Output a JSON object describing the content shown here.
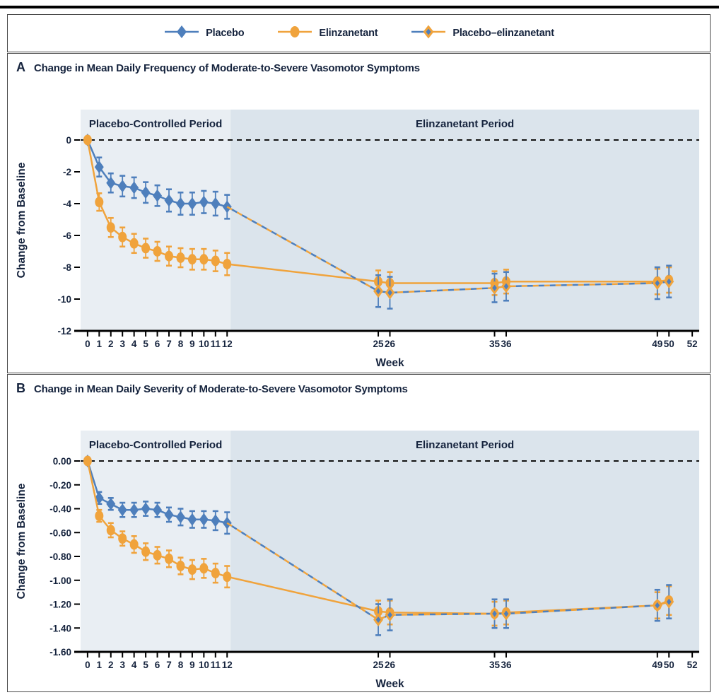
{
  "colors": {
    "blue": "#4e7fbc",
    "orange": "#f0a33c",
    "text": "#15233d",
    "shade_placebo_period": "#e9eef3",
    "shade_elinzanetant_period": "#dbe4ec",
    "zero_line": "#111111",
    "axis": "#000000"
  },
  "legend": {
    "items": [
      {
        "label": "Placebo",
        "marker": "blue-diamond-icon"
      },
      {
        "label": "Elinzanetant",
        "marker": "orange-circle-icon"
      },
      {
        "label": "Placebo–elinzanetant",
        "marker": "duo-diamond-icon"
      }
    ]
  },
  "panels": [
    {
      "letter": "A",
      "title": "Change in Mean Daily Frequency of Moderate-to-Severe Vasomotor Symptoms"
    },
    {
      "letter": "B",
      "title": "Change in Mean Daily Severity of Moderate-to-Severe Vasomotor Symptoms"
    }
  ],
  "chart_data": [
    {
      "type": "line",
      "panel": "A",
      "title": "Change in Mean Daily Frequency of Moderate-to-Severe Vasomotor Symptoms",
      "xlabel": "Week",
      "ylabel": "Change from Baseline",
      "xlim": [
        -0.6,
        52.6
      ],
      "ylim": [
        -12,
        0
      ],
      "grid": false,
      "zero_line_dashed": true,
      "xticks": [
        0,
        1,
        2,
        3,
        4,
        5,
        6,
        7,
        8,
        9,
        10,
        11,
        12,
        25,
        26,
        35,
        36,
        49,
        50,
        52
      ],
      "yticks": [
        0,
        -2,
        -4,
        -6,
        -8,
        -10,
        -12
      ],
      "ytick_labels": [
        "0",
        "-2",
        "-4",
        "-6",
        "-8",
        "-10",
        "-12"
      ],
      "regions": [
        {
          "label": "Placebo-Controlled Period",
          "from": -0.6,
          "to": 12.3
        },
        {
          "label": "Elinzanetant Period",
          "from": 12.3,
          "to": 52.6
        }
      ],
      "series": [
        {
          "name": "Placebo",
          "color_key": "blue",
          "marker": "diamond",
          "line": "solid",
          "x": [
            0,
            1,
            2,
            3,
            4,
            5,
            6,
            7,
            8,
            9,
            10,
            11,
            12
          ],
          "y": [
            0,
            -1.7,
            -2.7,
            -2.9,
            -3.0,
            -3.3,
            -3.5,
            -3.8,
            -4.0,
            -4.0,
            -3.9,
            -4.0,
            -4.2
          ],
          "err": [
            0,
            0.6,
            0.6,
            0.65,
            0.65,
            0.65,
            0.65,
            0.7,
            0.7,
            0.7,
            0.7,
            0.75,
            0.75
          ],
          "marker_start": 0
        },
        {
          "name": "Elinzanetant",
          "color_key": "orange",
          "marker": "circle",
          "line": "solid",
          "x": [
            0,
            1,
            2,
            3,
            4,
            5,
            6,
            7,
            8,
            9,
            10,
            11,
            12,
            25,
            26,
            35,
            36,
            49,
            50
          ],
          "y": [
            0,
            -3.9,
            -5.5,
            -6.1,
            -6.5,
            -6.8,
            -7.0,
            -7.3,
            -7.4,
            -7.5,
            -7.5,
            -7.6,
            -7.8,
            -8.9,
            -9.0,
            -9.0,
            -8.9,
            -8.9,
            -8.8
          ],
          "err": [
            0,
            0.55,
            0.6,
            0.6,
            0.6,
            0.6,
            0.6,
            0.6,
            0.6,
            0.65,
            0.65,
            0.65,
            0.7,
            0.7,
            0.7,
            0.75,
            0.75,
            0.8,
            0.8
          ],
          "marker_start": 0
        },
        {
          "name": "Placebo–elinzanetant",
          "color_key": "duo",
          "marker": "diamond-duo",
          "line": "dashed-duo",
          "x": [
            12,
            25,
            26,
            35,
            36,
            49,
            50
          ],
          "y": [
            -4.2,
            -9.5,
            -9.6,
            -9.3,
            -9.2,
            -9.0,
            -8.9
          ],
          "err": [
            0,
            1.0,
            1.0,
            0.9,
            0.9,
            1.0,
            1.0
          ],
          "marker_start": 1
        }
      ]
    },
    {
      "type": "line",
      "panel": "B",
      "title": "Change in Mean Daily Severity of Moderate-to-Severe Vasomotor Symptoms",
      "xlabel": "Week",
      "ylabel": "Change from Baseline",
      "xlim": [
        -0.6,
        52.6
      ],
      "ylim": [
        -1.6,
        0
      ],
      "grid": false,
      "zero_line_dashed": true,
      "xticks": [
        0,
        1,
        2,
        3,
        4,
        5,
        6,
        7,
        8,
        9,
        10,
        11,
        12,
        25,
        26,
        35,
        36,
        49,
        50,
        52
      ],
      "yticks": [
        0,
        -0.2,
        -0.4,
        -0.6,
        -0.8,
        -1.0,
        -1.2,
        -1.4,
        -1.6
      ],
      "ytick_labels": [
        "0.00",
        "-0.20",
        "-0.40",
        "-0.60",
        "-0.80",
        "-1.00",
        "-1.20",
        "-1.40",
        "-1.60"
      ],
      "regions": [
        {
          "label": "Placebo-Controlled Period",
          "from": -0.6,
          "to": 12.3
        },
        {
          "label": "Elinzanetant Period",
          "from": 12.3,
          "to": 52.6
        }
      ],
      "series": [
        {
          "name": "Placebo",
          "color_key": "blue",
          "marker": "diamond",
          "line": "solid",
          "x": [
            0,
            1,
            2,
            3,
            4,
            5,
            6,
            7,
            8,
            9,
            10,
            11,
            12
          ],
          "y": [
            0,
            -0.31,
            -0.36,
            -0.41,
            -0.41,
            -0.4,
            -0.41,
            -0.45,
            -0.47,
            -0.49,
            -0.49,
            -0.5,
            -0.52
          ],
          "err": [
            0,
            0.05,
            0.05,
            0.06,
            0.06,
            0.06,
            0.06,
            0.06,
            0.07,
            0.07,
            0.07,
            0.08,
            0.09
          ],
          "marker_start": 0
        },
        {
          "name": "Elinzanetant",
          "color_key": "orange",
          "marker": "circle",
          "line": "solid",
          "x": [
            0,
            1,
            2,
            3,
            4,
            5,
            6,
            7,
            8,
            9,
            10,
            11,
            12,
            25,
            26,
            35,
            36,
            49,
            50
          ],
          "y": [
            0,
            -0.46,
            -0.58,
            -0.65,
            -0.7,
            -0.76,
            -0.79,
            -0.82,
            -0.88,
            -0.91,
            -0.9,
            -0.94,
            -0.97,
            -1.26,
            -1.27,
            -1.28,
            -1.27,
            -1.21,
            -1.17
          ],
          "err": [
            0,
            0.05,
            0.06,
            0.06,
            0.07,
            0.07,
            0.07,
            0.07,
            0.07,
            0.08,
            0.08,
            0.08,
            0.09,
            0.09,
            0.1,
            0.1,
            0.1,
            0.11,
            0.12
          ],
          "marker_start": 0
        },
        {
          "name": "Placebo–elinzanetant",
          "color_key": "duo",
          "marker": "diamond-duo",
          "line": "dashed-duo",
          "x": [
            12,
            25,
            26,
            35,
            36,
            49,
            50
          ],
          "y": [
            -0.52,
            -1.33,
            -1.29,
            -1.28,
            -1.28,
            -1.21,
            -1.18
          ],
          "err": [
            0,
            0.13,
            0.13,
            0.12,
            0.12,
            0.13,
            0.14
          ],
          "marker_start": 1
        }
      ]
    }
  ]
}
